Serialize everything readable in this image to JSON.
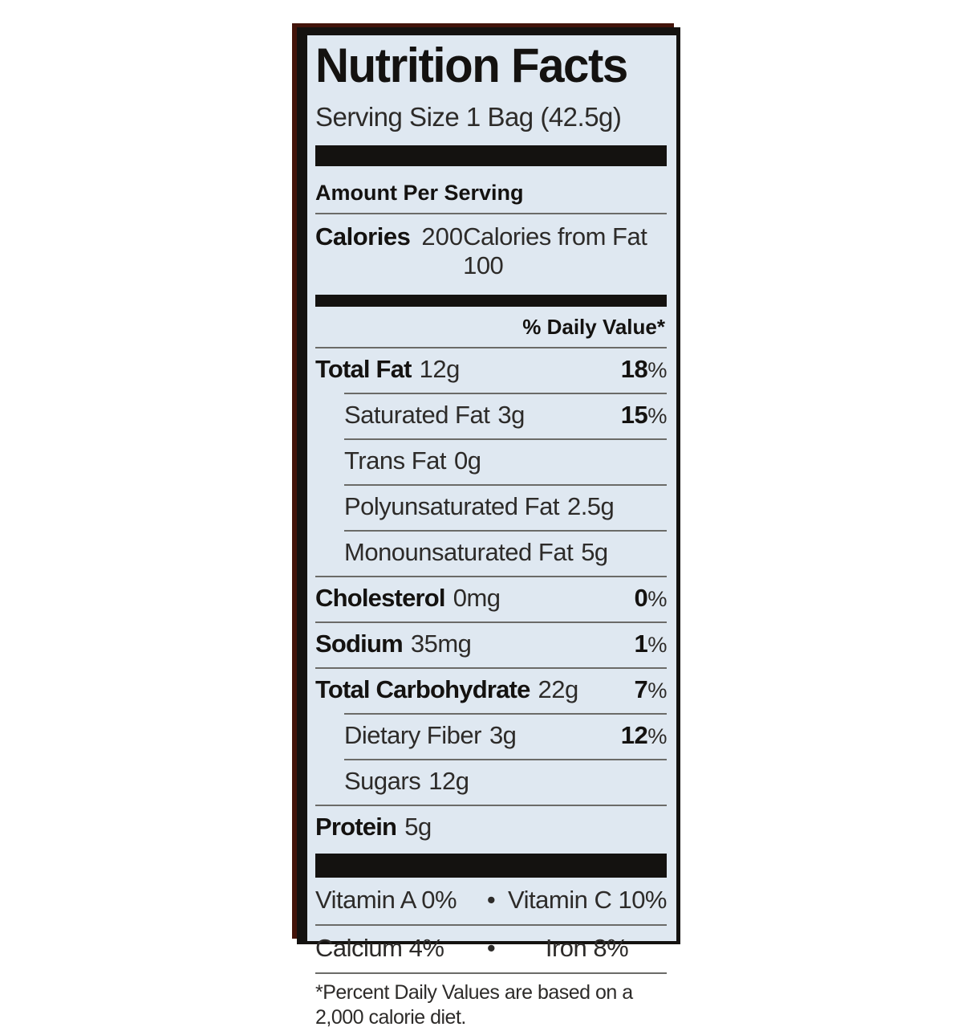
{
  "label": {
    "title": "Nutrition Facts",
    "serving_size": "Serving Size 1 Bag (42.5g)",
    "amount_per_serving": "Amount Per Serving",
    "calories_label": "Calories",
    "calories_value": "200",
    "calories_from_fat": "Calories from Fat 100",
    "daily_value_header": "% Daily Value*",
    "dv_suffix": "%",
    "bullet": "•",
    "footnote": "*Percent Daily Values are based on a 2,000 calorie diet."
  },
  "nutrients": [
    {
      "name": "Total Fat",
      "amount": "12g",
      "dv": "18",
      "bold": true,
      "indent": 0
    },
    {
      "name": "Saturated Fat",
      "amount": "3g",
      "dv": "15",
      "bold": false,
      "indent": 1
    },
    {
      "name": "Trans Fat",
      "amount": "0g",
      "dv": "",
      "bold": false,
      "indent": 1
    },
    {
      "name": "Polyunsaturated Fat",
      "amount": "2.5g",
      "dv": "",
      "bold": false,
      "indent": 1
    },
    {
      "name": "Monounsaturated Fat",
      "amount": "5g",
      "dv": "",
      "bold": false,
      "indent": 1
    },
    {
      "name": "Cholesterol",
      "amount": "0mg",
      "dv": "0",
      "bold": true,
      "indent": 0
    },
    {
      "name": "Sodium",
      "amount": "35mg",
      "dv": "1",
      "bold": true,
      "indent": 0
    },
    {
      "name": "Total Carbohydrate",
      "amount": "22g",
      "dv": "7",
      "bold": true,
      "indent": 0
    },
    {
      "name": "Dietary Fiber",
      "amount": "3g",
      "dv": "12",
      "bold": false,
      "indent": 1
    },
    {
      "name": "Sugars",
      "amount": "12g",
      "dv": "",
      "bold": false,
      "indent": 1
    },
    {
      "name": "Protein",
      "amount": "5g",
      "dv": "",
      "bold": true,
      "indent": 0
    }
  ],
  "vitamins": [
    {
      "left": "Vitamin A 0%",
      "right": "Vitamin C 10%"
    },
    {
      "left": "Calcium 4%",
      "right": "Iron 8%"
    }
  ],
  "colors": {
    "label_bg": "#dfe8f1",
    "ink": "#141210",
    "soft_ink": "#2d2b29",
    "rule": "#6b6b68",
    "page_bg": "#ffffff",
    "packaging_red": "#43140a"
  }
}
